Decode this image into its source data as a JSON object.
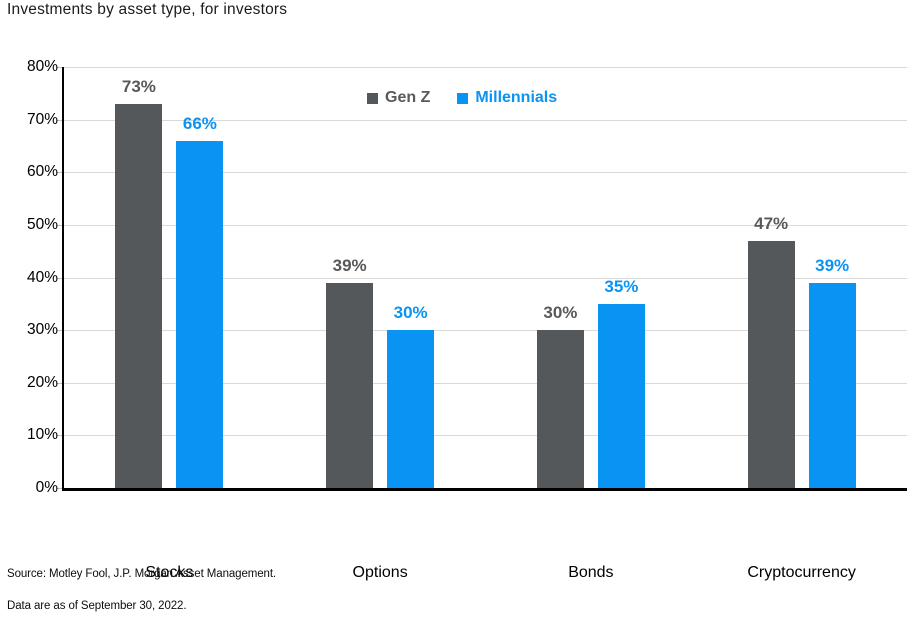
{
  "title": "Investments by asset type, for investors",
  "footer": {
    "source": "Source: Motley Fool, J.P. Morgan Asset Management.",
    "as_of": "Data are as of September 30, 2022."
  },
  "colors": {
    "gen_z_bar": "#54585A",
    "millennials_bar": "#0994F4",
    "gen_z_label": "#595959",
    "millennials_label": "#0994F4",
    "gridline": "#D9D9D9",
    "axis": "#000000"
  },
  "chart_data": {
    "type": "bar",
    "title": "Investments by asset type, for investors",
    "categories": [
      "Stocks",
      "Options",
      "Bonds",
      "Cryptocurrency"
    ],
    "series": [
      {
        "name": "Gen Z",
        "values": [
          73,
          39,
          30,
          47
        ],
        "color": "#54585A",
        "label_color": "#595959"
      },
      {
        "name": "Millennials",
        "values": [
          66,
          30,
          35,
          39
        ],
        "color": "#0994F4",
        "label_color": "#0994F4"
      }
    ],
    "value_suffix": "%",
    "xlabel": "",
    "ylabel": "",
    "ylim": [
      0,
      80
    ],
    "ytick_step": 10,
    "ytick_labels": [
      "0%",
      "10%",
      "20%",
      "30%",
      "40%",
      "50%",
      "60%",
      "70%",
      "80%"
    ],
    "grid": true,
    "legend_position": "top-center"
  }
}
